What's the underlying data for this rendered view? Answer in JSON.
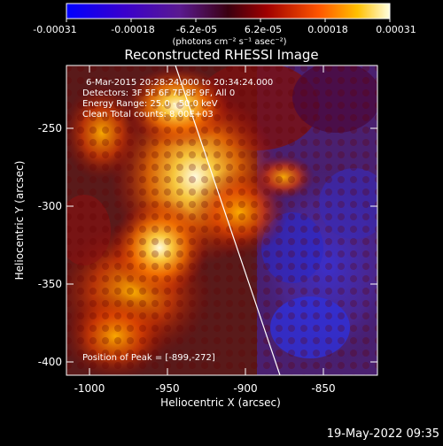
{
  "colorbar": {
    "tick_labels": [
      "-0.00031",
      "-0.00018",
      "-6.2e-05",
      "6.2e-05",
      "0.00018",
      "0.00031"
    ],
    "unit_label": "(photons cm⁻² s⁻¹ asec⁻²)"
  },
  "plot": {
    "title": "Reconstructed RHESSI Image",
    "xlabel": "Heliocentric X (arcsec)",
    "ylabel": "Heliocentric Y (arcsec)",
    "x_ticks": [
      "-1000",
      "-950",
      "-900",
      "-850"
    ],
    "y_ticks": [
      "-250",
      "-300",
      "-350",
      "-400"
    ],
    "annotations": [
      "6-Mar-2015 20:28:24.000 to 20:34:24.000",
      "Detectors: 3F 5F 6F 7F 8F 9F, All 0",
      "Energy Range: 25.0 - 50.0 keV",
      "Clean     Total counts: 8.00E+03"
    ],
    "peak_label": "Position of Peak = [-899,-272]"
  },
  "footer": {
    "timestamp": "19-May-2022 09:35"
  }
}
